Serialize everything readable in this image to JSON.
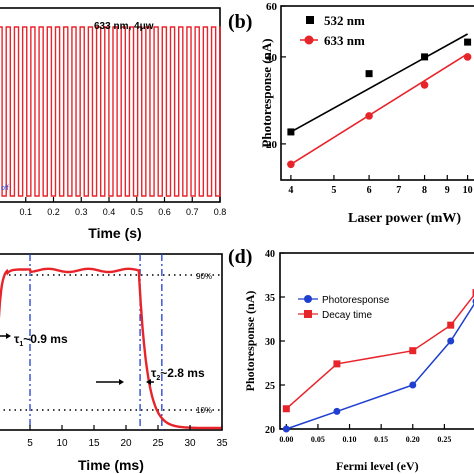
{
  "chart_data": [
    {
      "panel": "a",
      "type": "line",
      "annotation": "633 nm, 4",
      "annotation_unit": "μw",
      "side_label": "off",
      "xlabel": "Time (s)",
      "xlim": [
        0,
        0.8
      ],
      "x_ticks": [
        "0.1",
        "0.2",
        "0.3",
        "0.4",
        "0.5",
        "0.6",
        "0.7",
        "0.8"
      ],
      "series": [
        {
          "color": "#e8242b",
          "period_s": 0.0296,
          "high": 1,
          "low": 0
        }
      ],
      "colors": {
        "line": "#e8242b"
      }
    },
    {
      "panel": "b",
      "panel_label": "(b)",
      "type": "scatter",
      "xlabel": "Laser power (mW)",
      "ylabel": "Photoresponse (nA)",
      "scale": "log-log",
      "xlim": [
        3.8,
        10.5
      ],
      "ylim": [
        15,
        60
      ],
      "x_ticks": [
        "4",
        "5",
        "6",
        "7",
        "8",
        "9",
        "10"
      ],
      "y_ticks": [
        "20",
        "40",
        "60"
      ],
      "series": [
        {
          "name": "532 nm",
          "marker": "square",
          "color": "#000000",
          "x": [
            4,
            6,
            8,
            10
          ],
          "y": [
            22,
            35,
            40,
            45
          ],
          "fit": [
            [
              4,
              22
            ],
            [
              10,
              48
            ]
          ]
        },
        {
          "name": "633 nm",
          "marker": "circle",
          "color": "#e8242b",
          "x": [
            4,
            6,
            8,
            10
          ],
          "y": [
            17,
            25,
            32,
            40
          ],
          "fit": [
            [
              4,
              17
            ],
            [
              10,
              41
            ]
          ]
        }
      ],
      "legend": "top-left"
    },
    {
      "panel": "c",
      "type": "line",
      "xlabel": "Time (ms)",
      "xlim": [
        0,
        35
      ],
      "x_ticks": [
        "5",
        "10",
        "15",
        "20",
        "25",
        "30",
        "35"
      ],
      "reference_labels": [
        "90%",
        "10%"
      ],
      "annotations": [
        {
          "sym": "τ",
          "sub": "1",
          "value": "~0.9 ms"
        },
        {
          "sym": "τ",
          "sub": "2",
          "value": "~2.8 ms"
        }
      ],
      "markers_x": [
        5,
        22.2,
        25.6
      ],
      "colors": {
        "line": "#e8242b",
        "marker": "#1f3fd0"
      }
    },
    {
      "panel": "d",
      "panel_label": "(d)",
      "type": "line",
      "xlabel": "Fermi level (eV)",
      "ylabel": "Photoresponse (nA)",
      "xlim": [
        -0.01,
        0.3
      ],
      "ylim": [
        20,
        40
      ],
      "x_ticks": [
        "0.00",
        "0.05",
        "0.10",
        "0.15",
        "0.20",
        "0.25"
      ],
      "y_ticks": [
        "20",
        "25",
        "30",
        "35",
        "40"
      ],
      "categories": [
        0.0,
        0.08,
        0.2,
        0.26,
        0.3
      ],
      "series": [
        {
          "name": "Photoresponse",
          "marker": "circle",
          "color": "#1f3fd0",
          "values": [
            20,
            22,
            25,
            30,
            34.5
          ]
        },
        {
          "name": "Decay time",
          "marker": "square",
          "color": "#e8242b",
          "values": [
            22.3,
            27.4,
            28.9,
            31.8,
            35.5
          ]
        }
      ],
      "legend": "top-left"
    }
  ]
}
